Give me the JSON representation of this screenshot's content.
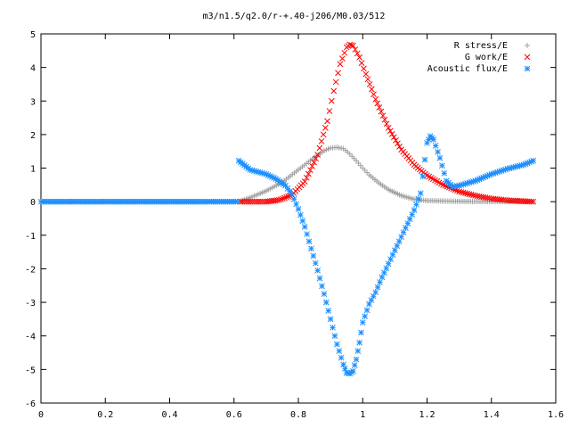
{
  "chart_data": {
    "type": "scatter",
    "title": "m3/n1.5/q2.0/r-+.40-j206/M0.03/512",
    "xlabel": "",
    "ylabel": "",
    "xlim": [
      0,
      1.6
    ],
    "ylim": [
      -6,
      5
    ],
    "x_ticks": [
      "0",
      "0.2",
      "0.4",
      "0.6",
      "0.8",
      "1",
      "1.2",
      "1.4",
      "1.6"
    ],
    "y_ticks": [
      "5",
      "4",
      "3",
      "2",
      "1",
      "0",
      "-1",
      "-2",
      "-3",
      "-4",
      "-5",
      "-6"
    ],
    "grid": false,
    "legend_position": "top-right",
    "series": [
      {
        "name": "R stress/E",
        "marker": "plus",
        "color": "#a0a0a0",
        "points": [
          [
            0.62,
            0.02
          ],
          [
            0.65,
            0.12
          ],
          [
            0.7,
            0.32
          ],
          [
            0.75,
            0.58
          ],
          [
            0.8,
            0.95
          ],
          [
            0.85,
            1.32
          ],
          [
            0.88,
            1.52
          ],
          [
            0.9,
            1.6
          ],
          [
            0.92,
            1.62
          ],
          [
            0.94,
            1.58
          ],
          [
            0.96,
            1.42
          ],
          [
            0.98,
            1.22
          ],
          [
            1.0,
            1.0
          ],
          [
            1.02,
            0.8
          ],
          [
            1.05,
            0.56
          ],
          [
            1.08,
            0.36
          ],
          [
            1.12,
            0.18
          ],
          [
            1.16,
            0.07
          ],
          [
            1.2,
            0.03
          ],
          [
            1.3,
            0.01
          ],
          [
            1.4,
            0.0
          ],
          [
            1.53,
            0.0
          ]
        ]
      },
      {
        "name": "G work/E",
        "marker": "cross",
        "color": "#ff0000",
        "points": [
          [
            0.62,
            0.0
          ],
          [
            0.7,
            0.0
          ],
          [
            0.74,
            0.05
          ],
          [
            0.78,
            0.2
          ],
          [
            0.82,
            0.6
          ],
          [
            0.86,
            1.4
          ],
          [
            0.89,
            2.4
          ],
          [
            0.91,
            3.3
          ],
          [
            0.93,
            4.1
          ],
          [
            0.95,
            4.6
          ],
          [
            0.96,
            4.68
          ],
          [
            0.97,
            4.65
          ],
          [
            0.99,
            4.3
          ],
          [
            1.01,
            3.8
          ],
          [
            1.04,
            3.05
          ],
          [
            1.08,
            2.2
          ],
          [
            1.12,
            1.55
          ],
          [
            1.16,
            1.1
          ],
          [
            1.2,
            0.78
          ],
          [
            1.25,
            0.5
          ],
          [
            1.3,
            0.3
          ],
          [
            1.35,
            0.18
          ],
          [
            1.4,
            0.09
          ],
          [
            1.45,
            0.04
          ],
          [
            1.53,
            0.0
          ]
        ]
      },
      {
        "name": "Acoustic flux/E",
        "marker": "star",
        "color": "#1e90ff",
        "points": [
          [
            0.0,
            0.0
          ],
          [
            0.1,
            0.0
          ],
          [
            0.2,
            0.0
          ],
          [
            0.3,
            0.0
          ],
          [
            0.4,
            0.0
          ],
          [
            0.5,
            0.0
          ],
          [
            0.61,
            0.0
          ],
          [
            0.615,
            1.22
          ],
          [
            0.65,
            0.95
          ],
          [
            0.7,
            0.82
          ],
          [
            0.73,
            0.68
          ],
          [
            0.76,
            0.48
          ],
          [
            0.78,
            0.22
          ],
          [
            0.8,
            -0.22
          ],
          [
            0.82,
            -0.75
          ],
          [
            0.84,
            -1.4
          ],
          [
            0.86,
            -2.05
          ],
          [
            0.88,
            -2.75
          ],
          [
            0.9,
            -3.5
          ],
          [
            0.92,
            -4.25
          ],
          [
            0.94,
            -4.85
          ],
          [
            0.95,
            -5.1
          ],
          [
            0.96,
            -5.12
          ],
          [
            0.97,
            -5.05
          ],
          [
            0.98,
            -4.7
          ],
          [
            0.99,
            -4.2
          ],
          [
            1.0,
            -3.6
          ],
          [
            1.02,
            -3.05
          ],
          [
            1.04,
            -2.7
          ],
          [
            1.06,
            -2.25
          ],
          [
            1.08,
            -1.85
          ],
          [
            1.1,
            -1.45
          ],
          [
            1.12,
            -1.05
          ],
          [
            1.14,
            -0.65
          ],
          [
            1.16,
            -0.25
          ],
          [
            1.18,
            0.25
          ],
          [
            1.2,
            1.75
          ],
          [
            1.21,
            1.95
          ],
          [
            1.22,
            1.85
          ],
          [
            1.24,
            1.3
          ],
          [
            1.26,
            0.62
          ],
          [
            1.28,
            0.45
          ],
          [
            1.3,
            0.48
          ],
          [
            1.35,
            0.62
          ],
          [
            1.4,
            0.82
          ],
          [
            1.45,
            0.98
          ],
          [
            1.5,
            1.1
          ],
          [
            1.53,
            1.22
          ]
        ]
      }
    ]
  }
}
